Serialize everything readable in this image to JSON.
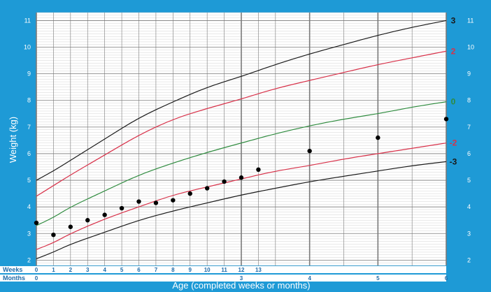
{
  "colors": {
    "background": "#1e9ad6",
    "plot_bg": "#ffffff",
    "grid_minor": "#c8c8c8",
    "grid_major": "#7a7a7a",
    "sd3": "#1a1a1a",
    "sd2": "#d8324a",
    "median": "#2e8b3e",
    "points": "#000000"
  },
  "chart_data": {
    "type": "line",
    "ylabel": "Weight (kg)",
    "xlabel": "Age (completed weeks or months)",
    "row_labels": {
      "weeks": "Weeks",
      "months": "Months"
    },
    "ylim": [
      1.8,
      11.3
    ],
    "y_ticks": [
      2,
      3,
      4,
      5,
      6,
      7,
      8,
      9,
      10,
      11
    ],
    "x_week_ticks": [
      "0",
      "1",
      "2",
      "3",
      "4",
      "5",
      "6",
      "7",
      "8",
      "9",
      "10",
      "11",
      "12",
      "13"
    ],
    "x_month_ticks": [
      "0",
      "3",
      "4",
      "5",
      "6"
    ],
    "grid": true,
    "curve_x_months": [
      0,
      0.25,
      0.5,
      1,
      1.5,
      2,
      2.5,
      3,
      3.5,
      4,
      4.5,
      5,
      5.5,
      6
    ],
    "series": [
      {
        "name": "3",
        "values": [
          5.0,
          5.35,
          5.75,
          6.55,
          7.35,
          7.95,
          8.5,
          8.9,
          9.35,
          9.75,
          10.1,
          10.45,
          10.75,
          11.0
        ]
      },
      {
        "name": "2",
        "values": [
          4.4,
          4.8,
          5.2,
          5.95,
          6.7,
          7.3,
          7.7,
          8.05,
          8.45,
          8.75,
          9.05,
          9.35,
          9.6,
          9.85
        ]
      },
      {
        "name": "0",
        "values": [
          3.3,
          3.6,
          4.0,
          4.6,
          5.2,
          5.65,
          6.05,
          6.4,
          6.75,
          7.05,
          7.3,
          7.5,
          7.75,
          7.95
        ]
      },
      {
        "name": "-2",
        "values": [
          2.4,
          2.65,
          3.0,
          3.55,
          4.0,
          4.45,
          4.75,
          5.05,
          5.35,
          5.55,
          5.8,
          6.0,
          6.2,
          6.4
        ]
      },
      {
        "name": "-3",
        "values": [
          2.05,
          2.3,
          2.6,
          3.05,
          3.5,
          3.85,
          4.15,
          4.45,
          4.7,
          4.95,
          5.15,
          5.35,
          5.55,
          5.7
        ]
      }
    ],
    "points": [
      {
        "x": 0,
        "y": 3.4
      },
      {
        "x": 0.25,
        "y": 2.95
      },
      {
        "x": 0.5,
        "y": 3.25
      },
      {
        "x": 0.75,
        "y": 3.5
      },
      {
        "x": 1,
        "y": 3.7
      },
      {
        "x": 1.25,
        "y": 3.95
      },
      {
        "x": 1.5,
        "y": 4.2
      },
      {
        "x": 1.75,
        "y": 4.15
      },
      {
        "x": 2,
        "y": 4.25
      },
      {
        "x": 2.25,
        "y": 4.5
      },
      {
        "x": 2.5,
        "y": 4.7
      },
      {
        "x": 2.75,
        "y": 4.95
      },
      {
        "x": 3,
        "y": 5.1
      },
      {
        "x": 3.25,
        "y": 5.4
      },
      {
        "x": 4,
        "y": 6.1
      },
      {
        "x": 5,
        "y": 6.6
      },
      {
        "x": 6,
        "y": 7.3
      }
    ]
  }
}
